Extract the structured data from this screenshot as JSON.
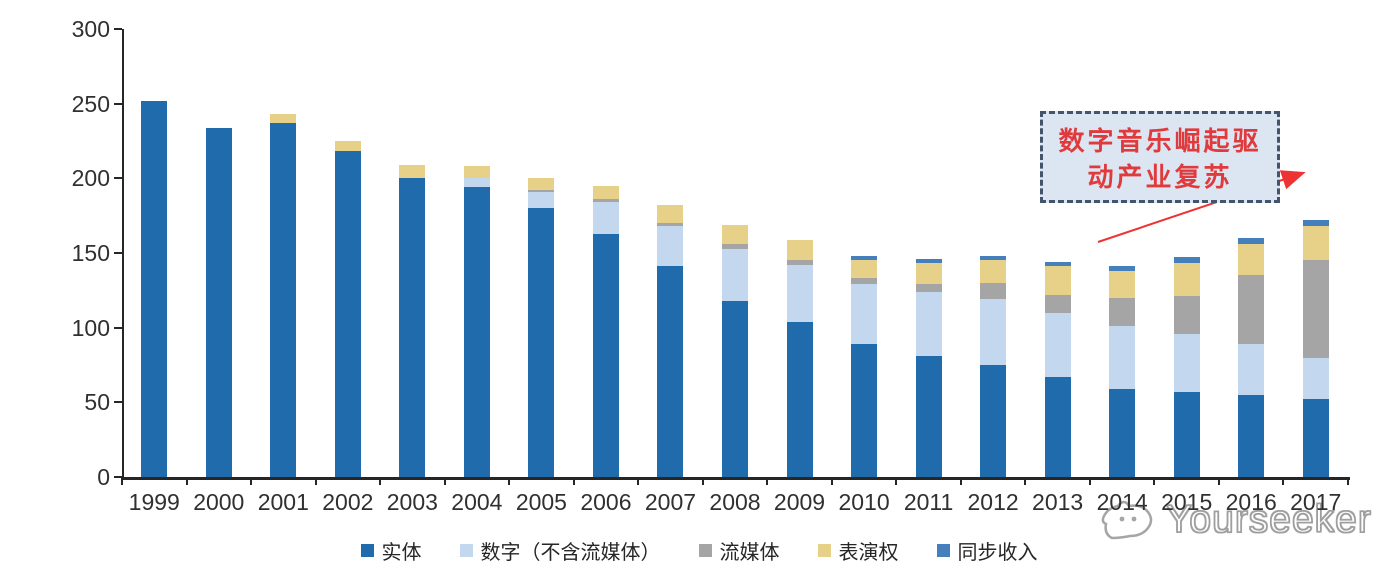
{
  "chart_data": {
    "type": "bar",
    "stacked": true,
    "title": "",
    "xlabel": "",
    "ylabel": "",
    "ylim": [
      0,
      300
    ],
    "y_ticks": [
      0,
      50,
      100,
      150,
      200,
      250,
      300
    ],
    "grid": false,
    "legend_position": "bottom",
    "categories": [
      "1999",
      "2000",
      "2001",
      "2002",
      "2003",
      "2004",
      "2005",
      "2006",
      "2007",
      "2008",
      "2009",
      "2010",
      "2011",
      "2012",
      "2013",
      "2014",
      "2015",
      "2016",
      "2017"
    ],
    "series": [
      {
        "name": "实体",
        "color": "#206bac",
        "values": [
          252,
          234,
          237,
          218,
          200,
          194,
          180,
          163,
          141,
          118,
          104,
          89,
          81,
          75,
          67,
          59,
          57,
          55,
          52
        ]
      },
      {
        "name": "数字（不含流媒体）",
        "color": "#c3d8ee",
        "values": [
          0,
          0,
          0,
          0,
          0,
          6,
          11,
          21,
          27,
          35,
          38,
          40,
          43,
          44,
          43,
          42,
          39,
          34,
          28
        ]
      },
      {
        "name": "流媒体",
        "color": "#a5a5a5",
        "values": [
          0,
          0,
          0,
          0,
          0,
          0,
          1,
          2,
          2,
          3,
          3,
          4,
          5,
          11,
          12,
          19,
          25,
          46,
          65
        ]
      },
      {
        "name": "表演权",
        "color": "#e7d088",
        "values": [
          0,
          0,
          6,
          7,
          9,
          8,
          8,
          9,
          12,
          13,
          14,
          12,
          14,
          15,
          19,
          18,
          22,
          21,
          23
        ]
      },
      {
        "name": "同步收入",
        "color": "#4580bd",
        "values": [
          0,
          0,
          0,
          0,
          0,
          0,
          0,
          0,
          0,
          0,
          0,
          3,
          3,
          3,
          3,
          3,
          4,
          4,
          4
        ]
      }
    ]
  },
  "annotation": {
    "line1": "数字音乐崛起驱",
    "line2": "动产业复苏",
    "text_color": "#e03a3c",
    "box_fill": "#dbe6f2",
    "box_border": "#44546a",
    "arrow_color": "#ee3333"
  },
  "watermark": {
    "text": "Yourseeker"
  },
  "colors": {
    "axis": "#262626",
    "tick_label": "#303030"
  }
}
